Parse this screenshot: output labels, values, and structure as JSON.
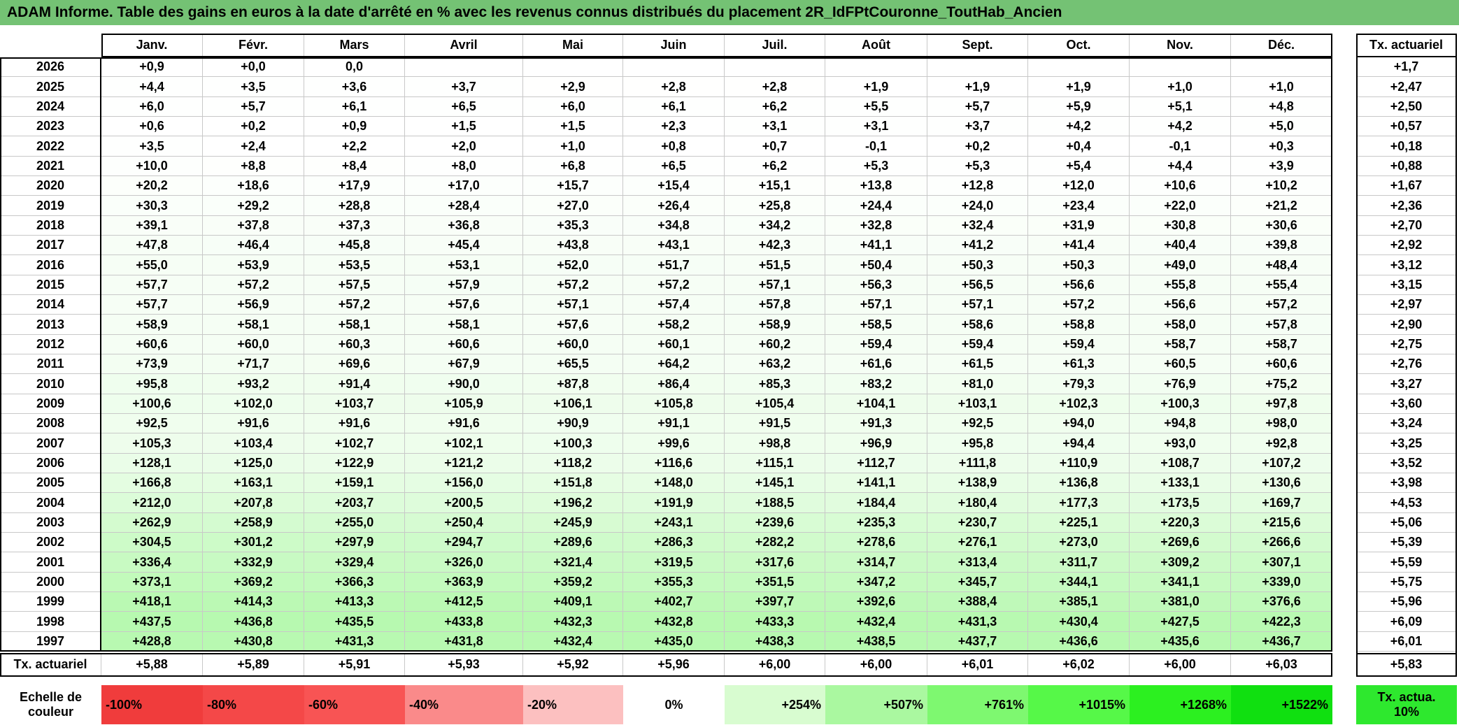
{
  "title": "ADAM Informe. Table des gains en euros à la date d'arrêté en % avec les revenus connus distribués du placement 2R_IdFPtCouronne_ToutHab_Ancien",
  "header": {
    "months": [
      "Janv.",
      "Févr.",
      "Mars",
      "Avril",
      "Mai",
      "Juin",
      "Juil.",
      "Août",
      "Sept.",
      "Oct.",
      "Nov.",
      "Déc."
    ],
    "rate": "Tx. actuariel"
  },
  "rows": [
    {
      "year": "2026",
      "values": [
        "+0,9",
        "+0,0",
        "0,0",
        null,
        null,
        null,
        null,
        null,
        null,
        null,
        null,
        null
      ],
      "rate": "+1,7"
    },
    {
      "year": "2025",
      "values": [
        "+4,4",
        "+3,5",
        "+3,6",
        "+3,7",
        "+2,9",
        "+2,8",
        "+2,8",
        "+1,9",
        "+1,9",
        "+1,9",
        "+1,0",
        "+1,0"
      ],
      "rate": "+2,47"
    },
    {
      "year": "2024",
      "values": [
        "+6,0",
        "+5,7",
        "+6,1",
        "+6,5",
        "+6,0",
        "+6,1",
        "+6,2",
        "+5,5",
        "+5,7",
        "+5,9",
        "+5,1",
        "+4,8"
      ],
      "rate": "+2,50"
    },
    {
      "year": "2023",
      "values": [
        "+0,6",
        "+0,2",
        "+0,9",
        "+1,5",
        "+1,5",
        "+2,3",
        "+3,1",
        "+3,1",
        "+3,7",
        "+4,2",
        "+4,2",
        "+5,0"
      ],
      "rate": "+0,57"
    },
    {
      "year": "2022",
      "values": [
        "+3,5",
        "+2,4",
        "+2,2",
        "+2,0",
        "+1,0",
        "+0,8",
        "+0,7",
        "-0,1",
        "+0,2",
        "+0,4",
        "-0,1",
        "+0,3"
      ],
      "rate": "+0,18"
    },
    {
      "year": "2021",
      "values": [
        "+10,0",
        "+8,8",
        "+8,4",
        "+8,0",
        "+6,8",
        "+6,5",
        "+6,2",
        "+5,3",
        "+5,3",
        "+5,4",
        "+4,4",
        "+3,9"
      ],
      "rate": "+0,88"
    },
    {
      "year": "2020",
      "values": [
        "+20,2",
        "+18,6",
        "+17,9",
        "+17,0",
        "+15,7",
        "+15,4",
        "+15,1",
        "+13,8",
        "+12,8",
        "+12,0",
        "+10,6",
        "+10,2"
      ],
      "rate": "+1,67"
    },
    {
      "year": "2019",
      "values": [
        "+30,3",
        "+29,2",
        "+28,8",
        "+28,4",
        "+27,0",
        "+26,4",
        "+25,8",
        "+24,4",
        "+24,0",
        "+23,4",
        "+22,0",
        "+21,2"
      ],
      "rate": "+2,36"
    },
    {
      "year": "2018",
      "values": [
        "+39,1",
        "+37,8",
        "+37,3",
        "+36,8",
        "+35,3",
        "+34,8",
        "+34,2",
        "+32,8",
        "+32,4",
        "+31,9",
        "+30,8",
        "+30,6"
      ],
      "rate": "+2,70"
    },
    {
      "year": "2017",
      "values": [
        "+47,8",
        "+46,4",
        "+45,8",
        "+45,4",
        "+43,8",
        "+43,1",
        "+42,3",
        "+41,1",
        "+41,2",
        "+41,4",
        "+40,4",
        "+39,8"
      ],
      "rate": "+2,92"
    },
    {
      "year": "2016",
      "values": [
        "+55,0",
        "+53,9",
        "+53,5",
        "+53,1",
        "+52,0",
        "+51,7",
        "+51,5",
        "+50,4",
        "+50,3",
        "+50,3",
        "+49,0",
        "+48,4"
      ],
      "rate": "+3,12"
    },
    {
      "year": "2015",
      "values": [
        "+57,7",
        "+57,2",
        "+57,5",
        "+57,9",
        "+57,2",
        "+57,2",
        "+57,1",
        "+56,3",
        "+56,5",
        "+56,6",
        "+55,8",
        "+55,4"
      ],
      "rate": "+3,15"
    },
    {
      "year": "2014",
      "values": [
        "+57,7",
        "+56,9",
        "+57,2",
        "+57,6",
        "+57,1",
        "+57,4",
        "+57,8",
        "+57,1",
        "+57,1",
        "+57,2",
        "+56,6",
        "+57,2"
      ],
      "rate": "+2,97"
    },
    {
      "year": "2013",
      "values": [
        "+58,9",
        "+58,1",
        "+58,1",
        "+58,1",
        "+57,6",
        "+58,2",
        "+58,9",
        "+58,5",
        "+58,6",
        "+58,8",
        "+58,0",
        "+57,8"
      ],
      "rate": "+2,90"
    },
    {
      "year": "2012",
      "values": [
        "+60,6",
        "+60,0",
        "+60,3",
        "+60,6",
        "+60,0",
        "+60,1",
        "+60,2",
        "+59,4",
        "+59,4",
        "+59,4",
        "+58,7",
        "+58,7"
      ],
      "rate": "+2,75"
    },
    {
      "year": "2011",
      "values": [
        "+73,9",
        "+71,7",
        "+69,6",
        "+67,9",
        "+65,5",
        "+64,2",
        "+63,2",
        "+61,6",
        "+61,5",
        "+61,3",
        "+60,5",
        "+60,6"
      ],
      "rate": "+2,76"
    },
    {
      "year": "2010",
      "values": [
        "+95,8",
        "+93,2",
        "+91,4",
        "+90,0",
        "+87,8",
        "+86,4",
        "+85,3",
        "+83,2",
        "+81,0",
        "+79,3",
        "+76,9",
        "+75,2"
      ],
      "rate": "+3,27"
    },
    {
      "year": "2009",
      "values": [
        "+100,6",
        "+102,0",
        "+103,7",
        "+105,9",
        "+106,1",
        "+105,8",
        "+105,4",
        "+104,1",
        "+103,1",
        "+102,3",
        "+100,3",
        "+97,8"
      ],
      "rate": "+3,60"
    },
    {
      "year": "2008",
      "values": [
        "+92,5",
        "+91,6",
        "+91,6",
        "+91,6",
        "+90,9",
        "+91,1",
        "+91,5",
        "+91,3",
        "+92,5",
        "+94,0",
        "+94,8",
        "+98,0"
      ],
      "rate": "+3,24"
    },
    {
      "year": "2007",
      "values": [
        "+105,3",
        "+103,4",
        "+102,7",
        "+102,1",
        "+100,3",
        "+99,6",
        "+98,8",
        "+96,9",
        "+95,8",
        "+94,4",
        "+93,0",
        "+92,8"
      ],
      "rate": "+3,25"
    },
    {
      "year": "2006",
      "values": [
        "+128,1",
        "+125,0",
        "+122,9",
        "+121,2",
        "+118,2",
        "+116,6",
        "+115,1",
        "+112,7",
        "+111,8",
        "+110,9",
        "+108,7",
        "+107,2"
      ],
      "rate": "+3,52"
    },
    {
      "year": "2005",
      "values": [
        "+166,8",
        "+163,1",
        "+159,1",
        "+156,0",
        "+151,8",
        "+148,0",
        "+145,1",
        "+141,1",
        "+138,9",
        "+136,8",
        "+133,1",
        "+130,6"
      ],
      "rate": "+3,98"
    },
    {
      "year": "2004",
      "values": [
        "+212,0",
        "+207,8",
        "+203,7",
        "+200,5",
        "+196,2",
        "+191,9",
        "+188,5",
        "+184,4",
        "+180,4",
        "+177,3",
        "+173,5",
        "+169,7"
      ],
      "rate": "+4,53"
    },
    {
      "year": "2003",
      "values": [
        "+262,9",
        "+258,9",
        "+255,0",
        "+250,4",
        "+245,9",
        "+243,1",
        "+239,6",
        "+235,3",
        "+230,7",
        "+225,1",
        "+220,3",
        "+215,6"
      ],
      "rate": "+5,06"
    },
    {
      "year": "2002",
      "values": [
        "+304,5",
        "+301,2",
        "+297,9",
        "+294,7",
        "+289,6",
        "+286,3",
        "+282,2",
        "+278,6",
        "+276,1",
        "+273,0",
        "+269,6",
        "+266,6"
      ],
      "rate": "+5,39"
    },
    {
      "year": "2001",
      "values": [
        "+336,4",
        "+332,9",
        "+329,4",
        "+326,0",
        "+321,4",
        "+319,5",
        "+317,6",
        "+314,7",
        "+313,4",
        "+311,7",
        "+309,2",
        "+307,1"
      ],
      "rate": "+5,59"
    },
    {
      "year": "2000",
      "values": [
        "+373,1",
        "+369,2",
        "+366,3",
        "+363,9",
        "+359,2",
        "+355,3",
        "+351,5",
        "+347,2",
        "+345,7",
        "+344,1",
        "+341,1",
        "+339,0"
      ],
      "rate": "+5,75"
    },
    {
      "year": "1999",
      "values": [
        "+418,1",
        "+414,3",
        "+413,3",
        "+412,5",
        "+409,1",
        "+402,7",
        "+397,7",
        "+392,6",
        "+388,4",
        "+385,1",
        "+381,0",
        "+376,6"
      ],
      "rate": "+5,96"
    },
    {
      "year": "1998",
      "values": [
        "+437,5",
        "+436,8",
        "+435,5",
        "+433,8",
        "+432,3",
        "+432,8",
        "+433,3",
        "+432,4",
        "+431,3",
        "+430,4",
        "+427,5",
        "+422,3"
      ],
      "rate": "+6,09"
    },
    {
      "year": "1997",
      "values": [
        "+428,8",
        "+430,8",
        "+431,3",
        "+431,8",
        "+432,4",
        "+435,0",
        "+438,3",
        "+438,5",
        "+437,7",
        "+436,6",
        "+435,6",
        "+436,7"
      ],
      "rate": "+6,01"
    }
  ],
  "footer": {
    "label": "Tx. actuariel",
    "values": [
      "+5,88",
      "+5,89",
      "+5,91",
      "+5,93",
      "+5,92",
      "+5,96",
      "+6,00",
      "+6,00",
      "+6,01",
      "+6,02",
      "+6,00",
      "+6,03"
    ],
    "rate": "+5,83"
  },
  "scale": {
    "label": "Echelle de couleur",
    "cells": [
      {
        "label": "-100%",
        "color": "#f03c3c"
      },
      {
        "label": "-80%",
        "color": "#f44848"
      },
      {
        "label": "-60%",
        "color": "#f85454"
      },
      {
        "label": "-40%",
        "color": "#fa8a8a"
      },
      {
        "label": "-20%",
        "color": "#fcc0c0"
      },
      {
        "label": "0%",
        "color": "#ffffff"
      },
      {
        "label": "+254%",
        "color": "#d8fcd0"
      },
      {
        "label": "+507%",
        "color": "#aaf8a0"
      },
      {
        "label": "+761%",
        "color": "#7ef870"
      },
      {
        "label": "+1015%",
        "color": "#56f848"
      },
      {
        "label": "+1268%",
        "color": "#2cf020"
      },
      {
        "label": "+1522%",
        "color": "#10e010"
      }
    ],
    "rate": {
      "label": "Tx. actua. 10%",
      "color": "#2ee82e"
    }
  }
}
